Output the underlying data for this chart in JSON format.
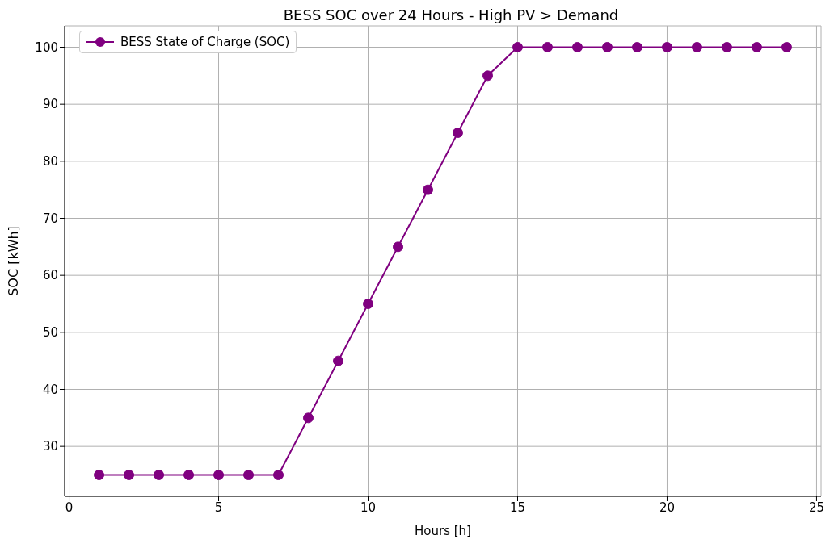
{
  "chart_data": {
    "type": "line",
    "title": "BESS SOC over 24 Hours - High PV > Demand",
    "xlabel": "Hours [h]",
    "ylabel": "SOC [kWh]",
    "x": [
      1,
      2,
      3,
      4,
      5,
      6,
      7,
      8,
      9,
      10,
      11,
      12,
      13,
      14,
      15,
      16,
      17,
      18,
      19,
      20,
      21,
      22,
      23,
      24
    ],
    "series": [
      {
        "name": "BESS State of Charge (SOC)",
        "color": "#800080",
        "values": [
          25,
          25,
          25,
          25,
          25,
          25,
          25,
          35,
          45,
          55,
          65,
          75,
          85,
          95,
          100,
          100,
          100,
          100,
          100,
          100,
          100,
          100,
          100,
          100
        ]
      }
    ],
    "xlim": [
      -0.15,
      25.15
    ],
    "xticks": [
      0,
      5,
      10,
      15,
      20,
      25
    ],
    "ylim": [
      21.25,
      103.75
    ],
    "yticks": [
      30,
      40,
      50,
      60,
      70,
      80,
      90,
      100
    ],
    "grid": true,
    "legend": "top left",
    "marker": "circle",
    "line_style": "solid"
  }
}
